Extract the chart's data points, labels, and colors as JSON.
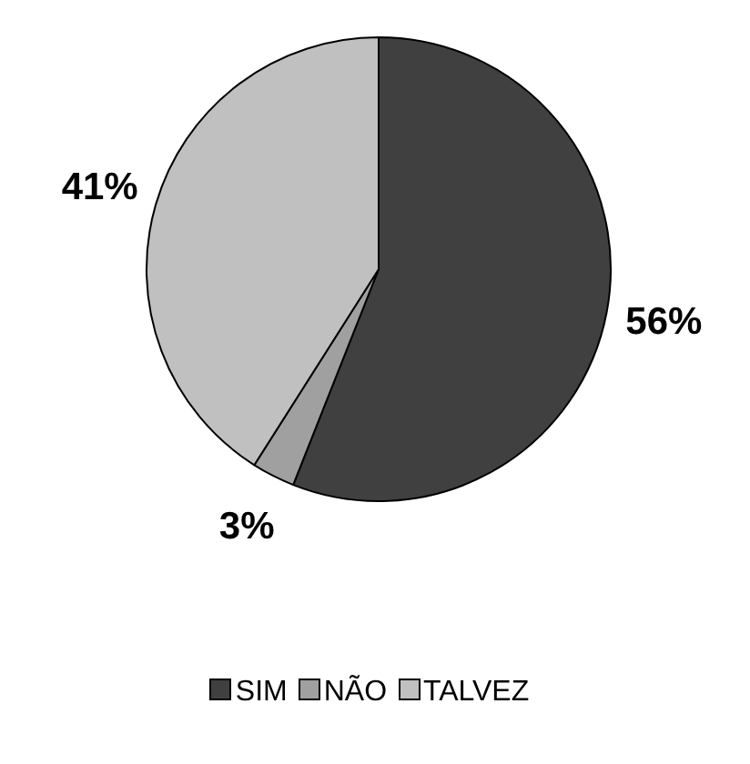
{
  "chart_data": {
    "type": "pie",
    "categories": [
      "SIM",
      "NÃO",
      "TALVEZ"
    ],
    "values": [
      56,
      3,
      41
    ],
    "colors": [
      "#404040",
      "#a0a0a0",
      "#c0c0c0"
    ],
    "value_labels": [
      "56%",
      "3%",
      "41%"
    ],
    "legend": "bottom"
  }
}
